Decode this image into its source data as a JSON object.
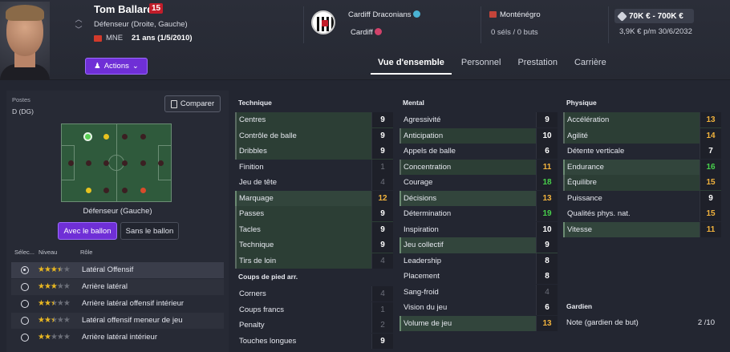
{
  "player": {
    "name": "Tom Ballard",
    "number": "15",
    "position": "Défenseur (Droite, Gauche)",
    "nationality": "MNE",
    "age": "21 ans (1/5/2010)"
  },
  "actions_label": "Actions",
  "club": {
    "name": "Cardiff Draconians",
    "city": "Cardiff"
  },
  "national": {
    "team": "Monténégro",
    "caps": "0 séls / 0 buts"
  },
  "value": {
    "range": "70K € - 700K €",
    "wage": "3,9K € p/m",
    "contract_end": "30/6/2032"
  },
  "tabs": [
    "Vue d'ensemble",
    "Personnel",
    "Prestation",
    "Carrière"
  ],
  "left": {
    "postes_label": "Postes",
    "postes_value": "D (DG)",
    "compare_label": "Comparer",
    "position_label": "Défenseur (Gauche)",
    "with_ball": "Avec le ballon",
    "without_ball": "Sans le ballon",
    "headers": {
      "select": "Sélec...",
      "level": "Niveau",
      "role": "Rôle"
    },
    "roles": [
      {
        "name": "Latéral Offensif",
        "stars": 3.5,
        "selected": true
      },
      {
        "name": "Arrière latéral",
        "stars": 3,
        "selected": false
      },
      {
        "name": "Arrière latéral offensif intérieur",
        "stars": 2.5,
        "selected": false
      },
      {
        "name": "Latéral offensif meneur de jeu",
        "stars": 2.5,
        "selected": false
      },
      {
        "name": "Arrière latéral intérieur",
        "stars": 2,
        "selected": false
      }
    ]
  },
  "technique": {
    "title": "Technique",
    "attrs": [
      {
        "name": "Centres",
        "value": "9"
      },
      {
        "name": "Contrôle de balle",
        "value": "9"
      },
      {
        "name": "Dribbles",
        "value": "9"
      },
      {
        "name": "Finition",
        "value": "1"
      },
      {
        "name": "Jeu de tête",
        "value": "4"
      },
      {
        "name": "Marquage",
        "value": "12"
      },
      {
        "name": "Passes",
        "value": "9"
      },
      {
        "name": "Tacles",
        "value": "9"
      },
      {
        "name": "Technique",
        "value": "9"
      },
      {
        "name": "Tirs de loin",
        "value": "4"
      }
    ],
    "set_pieces_title": "Coups de pied arr.",
    "set_pieces": [
      {
        "name": "Corners",
        "value": "4"
      },
      {
        "name": "Coups francs",
        "value": "1"
      },
      {
        "name": "Penalty",
        "value": "2"
      },
      {
        "name": "Touches longues",
        "value": "9"
      }
    ]
  },
  "mental": {
    "title": "Mental",
    "attrs": [
      {
        "name": "Agressivité",
        "value": "9"
      },
      {
        "name": "Anticipation",
        "value": "10"
      },
      {
        "name": "Appels de balle",
        "value": "6"
      },
      {
        "name": "Concentration",
        "value": "11"
      },
      {
        "name": "Courage",
        "value": "18"
      },
      {
        "name": "Décisions",
        "value": "13"
      },
      {
        "name": "Détermination",
        "value": "19"
      },
      {
        "name": "Inspiration",
        "value": "10"
      },
      {
        "name": "Jeu collectif",
        "value": "9"
      },
      {
        "name": "Leadership",
        "value": "8"
      },
      {
        "name": "Placement",
        "value": "8"
      },
      {
        "name": "Sang-froid",
        "value": "4"
      },
      {
        "name": "Vision du jeu",
        "value": "6"
      },
      {
        "name": "Volume de jeu",
        "value": "13"
      }
    ]
  },
  "physique": {
    "title": "Physique",
    "attrs": [
      {
        "name": "Accélération",
        "value": "13"
      },
      {
        "name": "Agilité",
        "value": "14"
      },
      {
        "name": "Détente verticale",
        "value": "7"
      },
      {
        "name": "Endurance",
        "value": "16"
      },
      {
        "name": "Équilibre",
        "value": "15"
      },
      {
        "name": "Puissance",
        "value": "9"
      },
      {
        "name": "Qualités phys. nat.",
        "value": "15"
      },
      {
        "name": "Vitesse",
        "value": "11"
      }
    ],
    "gk_title": "Gardien",
    "gk_label": "Note (gardien de but)",
    "gk_value": "2 /10"
  }
}
